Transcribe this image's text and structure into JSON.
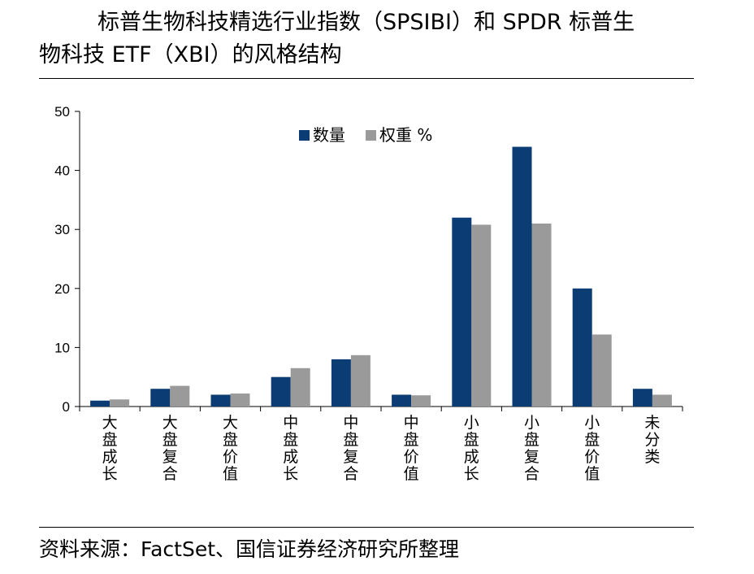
{
  "title": {
    "line1": "标普生物科技精选行业指数（SPSIBI）和 SPDR 标普生",
    "line2": "物科技 ETF（XBI）的风格结构"
  },
  "source": "资料来源：FactSet、国信证券经济研究所整理",
  "chart_data": {
    "type": "bar",
    "categories": [
      "大盘成长",
      "大盘复合",
      "大盘价值",
      "中盘成长",
      "中盘复合",
      "中盘价值",
      "小盘成长",
      "小盘复合",
      "小盘价值",
      "未分类"
    ],
    "series": [
      {
        "name": "数量",
        "color": "#0b3c73",
        "values": [
          1,
          3,
          2,
          5,
          8,
          2,
          32,
          44,
          20,
          3
        ]
      },
      {
        "name": "权重 %",
        "color": "#9a9a9a",
        "values": [
          1.2,
          3.5,
          2.2,
          6.5,
          8.7,
          1.9,
          30.8,
          31.0,
          12.2,
          2.0
        ]
      }
    ],
    "ylim": [
      0,
      50
    ],
    "yticks": [
      0,
      10,
      20,
      30,
      40,
      50
    ],
    "xlabel": "",
    "ylabel": "",
    "legend_position": "top-center",
    "grid": false
  }
}
